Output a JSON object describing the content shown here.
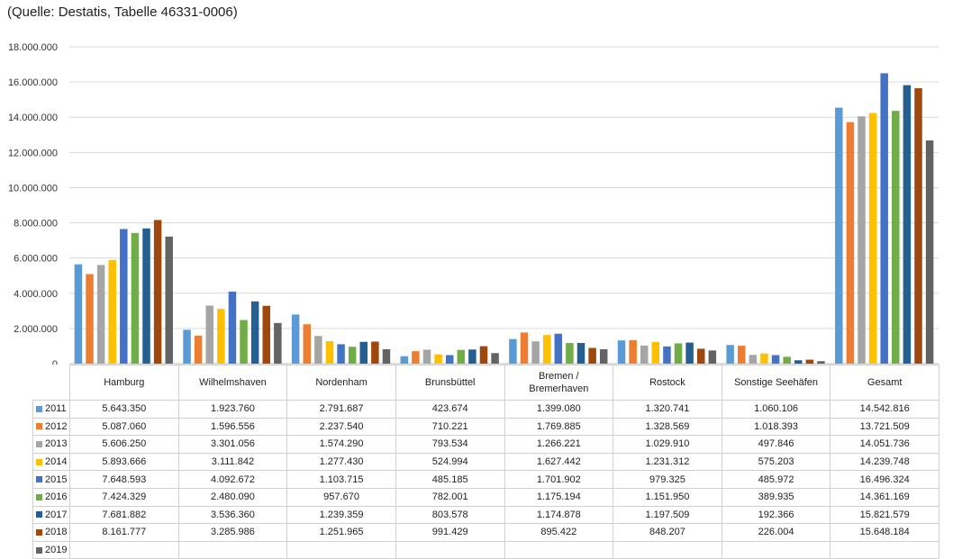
{
  "source_note": "(Quelle: Destatis, Tabelle 46331-0006)",
  "chart_data": {
    "type": "bar",
    "title": "",
    "xlabel": "",
    "ylabel": "",
    "ylim": [
      0,
      18000000
    ],
    "y_ticks": [
      "0",
      "2.000.000",
      "4.000.000",
      "6.000.000",
      "8.000.000",
      "10.000.000",
      "12.000.000",
      "14.000.000",
      "16.000.000",
      "18.000.000"
    ],
    "grid": true,
    "legend": "data-table",
    "categories": [
      "Hamburg",
      "Wilhelmshaven",
      "Nordenham",
      "Brunsbüttel",
      "Bremen / Bremerhaven",
      "Rostock",
      "Sonstige Seehäfen",
      "Gesamt"
    ],
    "series": [
      {
        "name": "2011",
        "color": "#5b9bd5",
        "values": [
          5643350,
          1923760,
          2791687,
          423674,
          1399080,
          1320741,
          1060106,
          14542816
        ],
        "labels": [
          "5.643.350",
          "1.923.760",
          "2.791.687",
          "423.674",
          "1.399.080",
          "1.320.741",
          "1.060.106",
          "14.542.816"
        ]
      },
      {
        "name": "2012",
        "color": "#ed7d31",
        "values": [
          5087060,
          1596556,
          2237540,
          710221,
          1769885,
          1328569,
          1018393,
          13721509
        ],
        "labels": [
          "5.087.060",
          "1.596.556",
          "2.237.540",
          "710.221",
          "1.769.885",
          "1.328.569",
          "1.018.393",
          "13.721.509"
        ]
      },
      {
        "name": "2013",
        "color": "#a5a5a5",
        "values": [
          5606250,
          3301056,
          1574290,
          793534,
          1266221,
          1029910,
          497846,
          14051736
        ],
        "labels": [
          "5.606.250",
          "3.301.056",
          "1.574.290",
          "793.534",
          "1.266.221",
          "1.029.910",
          "497.846",
          "14.051.736"
        ]
      },
      {
        "name": "2014",
        "color": "#ffc000",
        "values": [
          5893666,
          3111842,
          1277430,
          524994,
          1627442,
          1231312,
          575203,
          14239748
        ],
        "labels": [
          "5.893.666",
          "3.111.842",
          "1.277.430",
          "524.994",
          "1.627.442",
          "1.231.312",
          "575.203",
          "14.239.748"
        ]
      },
      {
        "name": "2015",
        "color": "#4472c4",
        "values": [
          7648593,
          4092672,
          1103715,
          485185,
          1701902,
          979325,
          485972,
          16496324
        ],
        "labels": [
          "7.648.593",
          "4.092.672",
          "1.103.715",
          "485.185",
          "1.701.902",
          "979.325",
          "485.972",
          "16.496.324"
        ]
      },
      {
        "name": "2016",
        "color": "#70ad47",
        "values": [
          7424329,
          2480090,
          957670,
          782001,
          1175194,
          1151950,
          389935,
          14361169
        ],
        "labels": [
          "7.424.329",
          "2.480.090",
          "957.670",
          "782.001",
          "1.175.194",
          "1.151.950",
          "389.935",
          "14.361.169"
        ]
      },
      {
        "name": "2017",
        "color": "#255e91",
        "values": [
          7681882,
          3536360,
          1239359,
          803578,
          1174878,
          1197509,
          192366,
          15821579
        ],
        "labels": [
          "7.681.882",
          "3.536.360",
          "1.239.359",
          "803.578",
          "1.174.878",
          "1.197.509",
          "192.366",
          "15.821.579"
        ]
      },
      {
        "name": "2018",
        "color": "#9e480e",
        "values": [
          8161777,
          3285986,
          1251965,
          991429,
          895422,
          848207,
          226004,
          15648184
        ],
        "labels": [
          "8.161.777",
          "3.285.986",
          "1.251.965",
          "991.429",
          "895.422",
          "848.207",
          "226.004",
          "15.648.184"
        ]
      },
      {
        "name": "2019",
        "color": "#636363",
        "values": [
          7220000,
          2310000,
          820000,
          600000,
          820000,
          750000,
          140000,
          12680000
        ],
        "labels": []
      }
    ]
  }
}
